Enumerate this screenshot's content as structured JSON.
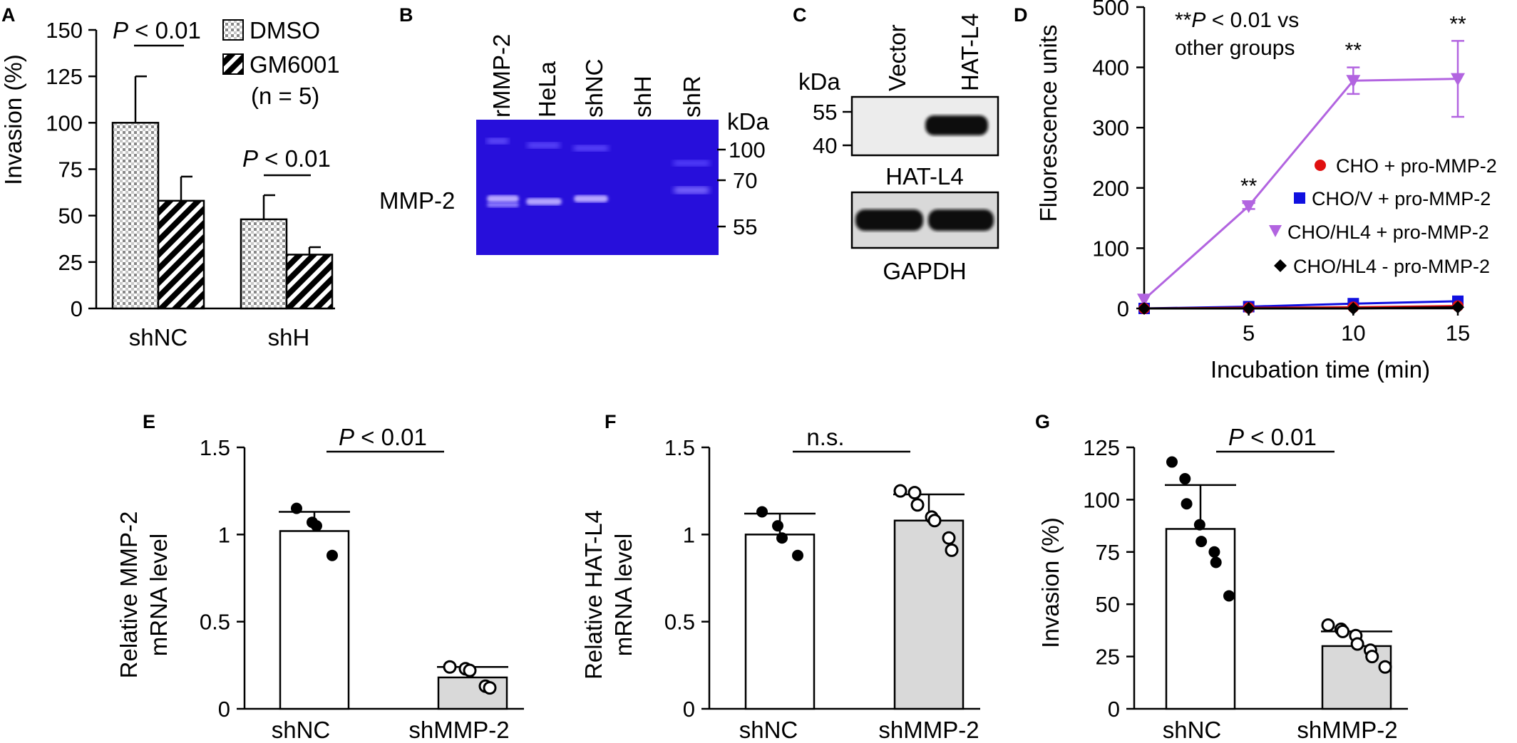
{
  "panels": {
    "A": "A",
    "B": "B",
    "C": "C",
    "D": "D",
    "E": "E",
    "F": "F",
    "G": "G"
  },
  "colors": {
    "gel_blue": "#2a10e6",
    "purple": "#b264e0",
    "red": "#e01010",
    "blue": "#1010e0",
    "gray_bar": "#d9d9d9"
  },
  "chart_data": [
    {
      "panel": "A",
      "type": "bar",
      "categories": [
        "shNC",
        "shH"
      ],
      "series": [
        {
          "name": "DMSO",
          "values": [
            100,
            48
          ],
          "errors": [
            25,
            13
          ],
          "pattern": "checker"
        },
        {
          "name": "GM6001",
          "values": [
            58,
            29
          ],
          "errors": [
            13,
            4
          ],
          "pattern": "diagonal-stripes"
        }
      ],
      "ylabel": "Invasion (%)",
      "yticks": [
        0,
        25,
        50,
        75,
        100,
        125,
        150
      ],
      "ylim": [
        0,
        150
      ],
      "legend_note": "(n = 5)",
      "annotations": [
        {
          "text_italic": "P",
          "text": " < 0.01",
          "group": "shNC"
        },
        {
          "text_italic": "P",
          "text": " < 0.01",
          "group": "shH"
        }
      ]
    },
    {
      "panel": "B",
      "type": "gel",
      "lanes": [
        "rMMP-2",
        "HeLa",
        "shNC",
        "shH",
        "shR"
      ],
      "band_label": "MMP-2",
      "marker_unit": "kDa",
      "markers": [
        "100",
        "70",
        "55"
      ]
    },
    {
      "panel": "C",
      "type": "western-blot",
      "lanes": [
        "Vector",
        "HAT-L4"
      ],
      "marker_unit": "kDa",
      "markers": [
        "55",
        "40"
      ],
      "blots": [
        "HAT-L4",
        "GAPDH"
      ]
    },
    {
      "panel": "D",
      "type": "line",
      "x": [
        0,
        5,
        10,
        15
      ],
      "xticks": [
        "5",
        "10",
        "15"
      ],
      "xlabel": "Incubation time (min)",
      "ylabel": "Fluorescence units",
      "yticks": [
        0,
        100,
        200,
        300,
        400,
        500
      ],
      "ylim": [
        0,
        500
      ],
      "xlim": [
        0,
        15
      ],
      "series": [
        {
          "name": "CHO + pro-MMP-2",
          "marker": "circle",
          "color": "#e01010",
          "values": [
            0,
            1,
            2,
            4
          ]
        },
        {
          "name": "CHO/V + pro-MMP-2",
          "marker": "square",
          "color": "#1010e0",
          "values": [
            0,
            3,
            8,
            12
          ]
        },
        {
          "name": "CHO/HL4 + pro-MMP-2",
          "marker": "triangle-down",
          "color": "#b264e0",
          "values": [
            15,
            170,
            378,
            381
          ],
          "errors": [
            0,
            5,
            22,
            63
          ]
        },
        {
          "name": "CHO/HL4 - pro-MMP-2",
          "marker": "diamond",
          "color": "#000000",
          "values": [
            0,
            0,
            0,
            2
          ]
        }
      ],
      "significance": [
        "**",
        "**",
        "**"
      ],
      "note_stars": "**",
      "note_italic": "P",
      "note_line1": " < 0.01 vs",
      "note_line2": "other groups"
    },
    {
      "panel": "E",
      "type": "bar",
      "categories": [
        "shNC",
        "shMMP-2"
      ],
      "values": [
        1.02,
        0.18
      ],
      "sd": [
        0.11,
        0.06
      ],
      "points": [
        [
          1.15,
          1.07,
          1.05,
          0.88
        ],
        [
          0.24,
          0.23,
          0.22,
          0.13,
          0.12
        ]
      ],
      "ylabel": [
        "Relative MMP-2",
        "mRNA level"
      ],
      "yticks": [
        "0",
        "0.5",
        "1",
        "1.5"
      ],
      "ylim": [
        0,
        1.5
      ],
      "annotation": {
        "italic": "P",
        "text": " < 0.01"
      }
    },
    {
      "panel": "F",
      "type": "bar",
      "categories": [
        "shNC",
        "shMMP-2"
      ],
      "values": [
        1.0,
        1.08
      ],
      "sd": [
        0.12,
        0.15
      ],
      "points": [
        [
          1.13,
          1.05,
          0.98,
          0.88
        ],
        [
          1.25,
          1.24,
          1.17,
          1.1,
          1.08,
          0.98,
          0.91
        ]
      ],
      "ylabel": [
        "Relative HAT-L4",
        "mRNA level"
      ],
      "yticks": [
        "0",
        "0.5",
        "1",
        "1.5"
      ],
      "ylim": [
        0,
        1.5
      ],
      "annotation": {
        "text": "n.s."
      }
    },
    {
      "panel": "G",
      "type": "bar",
      "categories": [
        "shNC",
        "shMMP-2"
      ],
      "values": [
        86,
        30
      ],
      "sd": [
        21,
        7
      ],
      "points": [
        [
          118,
          110,
          98,
          88,
          80,
          75,
          70,
          54
        ],
        [
          40,
          38,
          37,
          35,
          31,
          28,
          25,
          20
        ]
      ],
      "ylabel": "Invasion (%)",
      "yticks": [
        "0",
        "25",
        "50",
        "75",
        "100",
        "125"
      ],
      "ylim": [
        0,
        125
      ],
      "annotation": {
        "italic": "P",
        "text": " < 0.01"
      }
    }
  ]
}
